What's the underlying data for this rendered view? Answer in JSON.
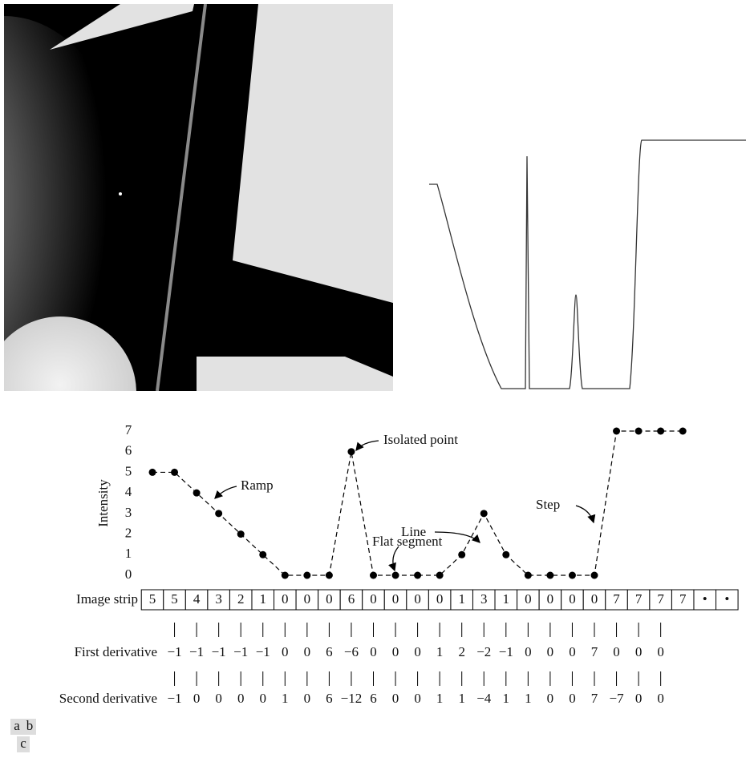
{
  "chart_data": {
    "type": "line",
    "ylabel": "Intensity",
    "values": [
      5,
      5,
      4,
      3,
      2,
      1,
      0,
      0,
      0,
      6,
      0,
      0,
      0,
      0,
      1,
      3,
      1,
      0,
      0,
      0,
      0,
      7,
      7,
      7,
      7
    ],
    "ylim": [
      0,
      7
    ],
    "yticks": [
      0,
      1,
      2,
      3,
      4,
      5,
      6,
      7
    ],
    "color": "#000000",
    "annotations": [
      "Isolated point",
      "Ramp",
      "Line",
      "Flat segment",
      "Step"
    ]
  },
  "image_strip": {
    "label": "Image strip",
    "cells": [
      "5",
      "5",
      "4",
      "3",
      "2",
      "1",
      "0",
      "0",
      "0",
      "6",
      "0",
      "0",
      "0",
      "0",
      "1",
      "3",
      "1",
      "0",
      "0",
      "0",
      "0",
      "7",
      "7",
      "7",
      "7",
      "•",
      "•"
    ]
  },
  "first_derivative": {
    "label": "First derivative",
    "values": [
      "−1",
      "−1",
      "−1",
      "−1",
      "−1",
      "0",
      "0",
      "6",
      "−6",
      "0",
      "0",
      "0",
      "1",
      "2",
      "−2",
      "−1",
      "0",
      "0",
      "0",
      "7",
      "0",
      "0",
      "0"
    ]
  },
  "second_derivative": {
    "label": "Second derivative",
    "values": [
      "−1",
      "0",
      "0",
      "0",
      "0",
      "1",
      "0",
      "6",
      "−12",
      "6",
      "0",
      "0",
      "1",
      "1",
      "−4",
      "1",
      "1",
      "0",
      "0",
      "7",
      "−7",
      "0",
      "0"
    ]
  },
  "panel_labels": [
    "a",
    "b",
    "c"
  ]
}
